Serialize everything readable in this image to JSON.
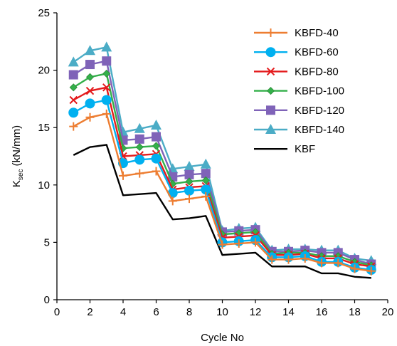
{
  "chart_data": {
    "type": "line",
    "xlabel": "Cycle No",
    "ylabel_main": "K",
    "ylabel_sub": "sec",
    "ylabel_unit": " (kN/mm)",
    "xlim": [
      0,
      20
    ],
    "ylim": [
      0,
      25
    ],
    "xticks": [
      0,
      2,
      4,
      6,
      8,
      10,
      12,
      14,
      16,
      18,
      20
    ],
    "yticks": [
      0,
      5,
      10,
      15,
      20,
      25
    ],
    "grid": false,
    "legend_position": "top-right",
    "x": [
      1,
      2,
      3,
      4,
      5,
      6,
      7,
      8,
      9,
      10,
      11,
      12,
      13,
      14,
      15,
      16,
      17,
      18,
      19
    ],
    "series": [
      {
        "name": "KBFD-40",
        "color": "#ED7D31",
        "marker": "plus",
        "values": [
          15.1,
          15.9,
          16.2,
          10.8,
          11.0,
          11.2,
          8.6,
          8.8,
          9.0,
          4.8,
          4.9,
          5.0,
          3.5,
          3.5,
          3.6,
          3.2,
          3.2,
          2.7,
          2.5
        ]
      },
      {
        "name": "KBFD-60",
        "color": "#00B0F0",
        "marker": "circle",
        "values": [
          16.3,
          17.1,
          17.4,
          11.9,
          12.2,
          12.3,
          9.3,
          9.5,
          9.6,
          5.0,
          5.1,
          5.2,
          3.7,
          3.7,
          3.8,
          3.3,
          3.3,
          2.8,
          2.6
        ]
      },
      {
        "name": "KBFD-80",
        "color": "#E41A1C",
        "marker": "x",
        "values": [
          17.4,
          18.2,
          18.5,
          12.5,
          12.6,
          12.7,
          9.6,
          9.8,
          9.9,
          5.4,
          5.5,
          5.6,
          3.9,
          3.9,
          4.0,
          3.6,
          3.6,
          3.1,
          2.9
        ]
      },
      {
        "name": "KBFD-100",
        "color": "#33B04A",
        "marker": "diamond",
        "values": [
          18.5,
          19.4,
          19.7,
          13.2,
          13.3,
          13.4,
          10.1,
          10.3,
          10.4,
          5.7,
          5.8,
          5.9,
          4.0,
          4.1,
          4.1,
          3.8,
          3.8,
          3.3,
          3.0
        ]
      },
      {
        "name": "KBFD-120",
        "color": "#7F63B8",
        "marker": "square",
        "values": [
          19.6,
          20.5,
          20.8,
          13.9,
          14.0,
          14.2,
          10.7,
          10.9,
          11.0,
          5.9,
          6.0,
          6.1,
          4.2,
          4.2,
          4.3,
          4.1,
          4.1,
          3.5,
          3.1
        ]
      },
      {
        "name": "KBFD-140",
        "color": "#4BACC6",
        "marker": "triangle",
        "values": [
          20.7,
          21.7,
          22.0,
          14.6,
          14.9,
          15.2,
          11.4,
          11.6,
          11.8,
          6.0,
          6.2,
          6.3,
          4.3,
          4.4,
          4.4,
          4.3,
          4.3,
          3.6,
          3.4
        ]
      },
      {
        "name": "KBF",
        "color": "#000000",
        "marker": "none",
        "values": [
          12.6,
          13.3,
          13.5,
          9.1,
          9.2,
          9.3,
          7.0,
          7.1,
          7.3,
          3.9,
          4.0,
          4.1,
          2.9,
          2.9,
          2.9,
          2.3,
          2.3,
          2.0,
          1.9
        ]
      }
    ]
  }
}
